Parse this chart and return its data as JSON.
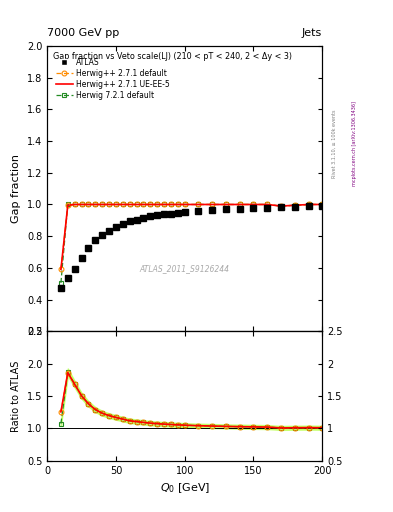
{
  "title_top": "7000 GeV pp",
  "title_right": "Jets",
  "main_title": "Gap fraction vs Veto scale(LJ) (210 < pT < 240, 2 < Δy < 3)",
  "watermark": "ATLAS_2011_S9126244",
  "right_label1": "Rivet 3.1.10, ≥ 100k events",
  "right_label2": "mcplots.cern.ch [arXiv:1306.3436]",
  "xlabel": "$Q_0$ [GeV]",
  "ylabel_main": "Gap fraction",
  "ylabel_ratio": "Ratio to ATLAS",
  "xlim": [
    0,
    200
  ],
  "ylim_main": [
    0.2,
    2.0
  ],
  "ylim_ratio": [
    0.5,
    2.5
  ],
  "atlas_x": [
    10,
    15,
    20,
    25,
    30,
    35,
    40,
    45,
    50,
    55,
    60,
    65,
    70,
    75,
    80,
    85,
    90,
    95,
    100,
    110,
    120,
    130,
    140,
    150,
    160,
    170,
    180,
    190,
    200
  ],
  "atlas_y": [
    0.47,
    0.535,
    0.595,
    0.665,
    0.725,
    0.775,
    0.81,
    0.835,
    0.855,
    0.875,
    0.895,
    0.905,
    0.915,
    0.925,
    0.932,
    0.938,
    0.943,
    0.948,
    0.953,
    0.96,
    0.965,
    0.97,
    0.974,
    0.977,
    0.98,
    0.983,
    0.985,
    0.988,
    0.99
  ],
  "hwpp271_x": [
    10,
    15,
    20,
    25,
    30,
    35,
    40,
    45,
    50,
    55,
    60,
    65,
    70,
    75,
    80,
    85,
    90,
    95,
    100,
    110,
    120,
    130,
    140,
    150,
    160,
    170,
    180,
    190,
    200
  ],
  "hwpp271_y": [
    0.59,
    0.995,
    1.0,
    1.0,
    1.0,
    1.0,
    1.0,
    1.0,
    1.0,
    1.0,
    1.0,
    1.0,
    1.0,
    1.0,
    1.0,
    1.0,
    1.0,
    1.0,
    1.0,
    1.0,
    1.0,
    1.0,
    1.0,
    1.0,
    1.0,
    0.99,
    0.995,
    1.0,
    1.0
  ],
  "hwpp271ue_x": [
    10,
    15,
    20,
    25,
    30,
    35,
    40,
    45,
    50,
    55,
    60,
    65,
    70,
    75,
    80,
    85,
    90,
    95,
    100,
    110,
    120,
    130,
    140,
    150,
    160,
    170,
    180,
    190,
    200
  ],
  "hwpp271ue_y": [
    0.59,
    0.995,
    1.0,
    1.0,
    1.0,
    1.0,
    1.0,
    1.0,
    1.0,
    1.0,
    1.0,
    1.0,
    1.0,
    1.0,
    1.0,
    1.0,
    1.0,
    1.0,
    1.0,
    1.0,
    1.0,
    1.0,
    1.0,
    1.0,
    1.0,
    0.99,
    0.995,
    1.0,
    1.0
  ],
  "hw721_x": [
    10,
    15,
    20,
    25,
    30,
    35,
    40,
    45,
    50,
    55,
    60,
    65,
    70,
    75,
    80,
    85,
    90,
    95,
    100,
    110,
    120,
    130,
    140,
    150,
    160,
    170,
    180,
    190,
    200
  ],
  "hw721_y": [
    0.505,
    1.0,
    1.0,
    1.0,
    1.0,
    1.0,
    1.0,
    1.0,
    1.0,
    1.0,
    1.0,
    1.0,
    1.0,
    1.0,
    1.0,
    1.0,
    1.0,
    1.0,
    1.0,
    1.0,
    1.0,
    1.0,
    1.0,
    1.0,
    1.0,
    0.99,
    0.995,
    1.0,
    1.0
  ],
  "atlas_color": "#000000",
  "hwpp271_color": "#FF8C00",
  "hwpp271ue_color": "#FF0000",
  "hw721_color": "#228B22",
  "hw721_fill": "#ADFF2F",
  "bg_color": "#ffffff"
}
